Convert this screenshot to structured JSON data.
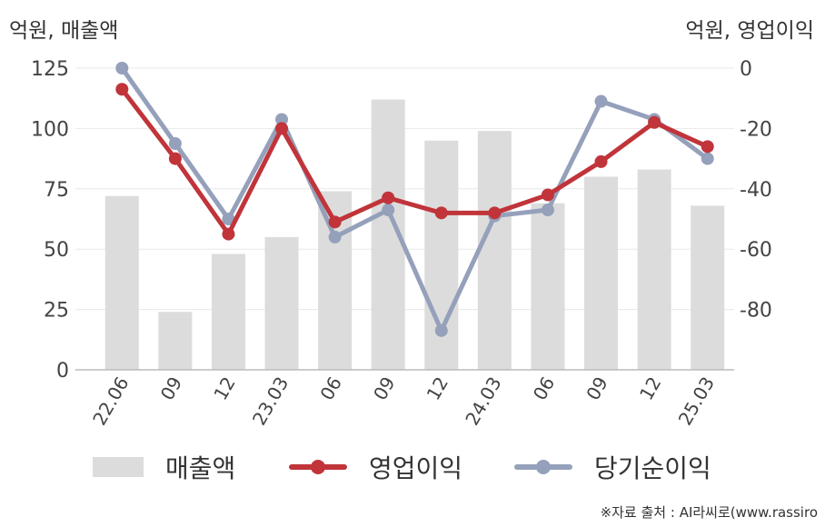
{
  "labels": {
    "left_unit": "억원, 매출액",
    "right_unit": "억원, 영업이익",
    "source": "※자료 출처 : AI라씨로(www.rassiro"
  },
  "colors": {
    "bar": "#dcdcdc",
    "operating_profit": "#c0343a",
    "net_income": "#95a0bb",
    "axis": "#bbbbbb",
    "grid": "#e8e8e8"
  },
  "chart_data": {
    "type": "bar",
    "categories": [
      "22.06",
      "09",
      "12",
      "23.03",
      "06",
      "09",
      "12",
      "24.03",
      "06",
      "09",
      "12",
      "25.03"
    ],
    "ylim_left": [
      0,
      125
    ],
    "yticks_left": [
      0,
      25,
      50,
      75,
      100,
      125
    ],
    "ylim_right": [
      -100,
      0
    ],
    "yticks_right": [
      0,
      -20,
      -40,
      -60,
      -80
    ],
    "grid": true,
    "legend_position": "bottom",
    "series": [
      {
        "name": "매출액",
        "type": "bar",
        "axis": "left",
        "values": [
          72,
          24,
          48,
          55,
          74,
          112,
          95,
          99,
          69,
          80,
          83,
          68
        ]
      },
      {
        "name": "영업이익",
        "type": "line",
        "axis": "right",
        "values": [
          -7,
          -30,
          -55,
          -20,
          -51,
          -43,
          -48,
          -48,
          -42,
          -31,
          -18,
          -26
        ]
      },
      {
        "name": "당기순이익",
        "type": "line",
        "axis": "right",
        "values": [
          0,
          -25,
          -50,
          -17,
          -56,
          -47,
          -87,
          -49,
          -47,
          -11,
          -17,
          -30
        ]
      }
    ]
  }
}
